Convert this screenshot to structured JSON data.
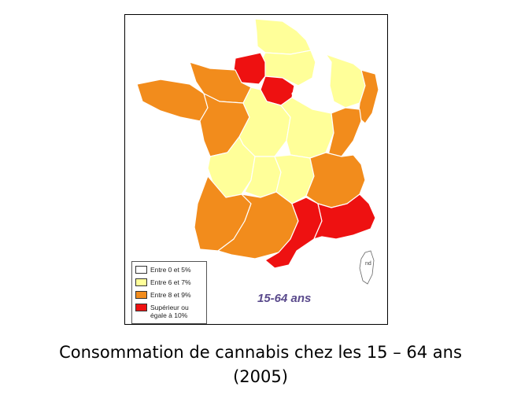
{
  "map": {
    "subtitle": "15-64 ans",
    "corsica_label": "nd",
    "legend": [
      {
        "label": "Entre 0 et 5%",
        "color": "#ffffff"
      },
      {
        "label": "Entre 6 et 7%",
        "color": "#ffff99"
      },
      {
        "label": "Entre 8 et 9%",
        "color": "#f28c1c"
      },
      {
        "label": "Supérieur ou\négale à 10%",
        "color": "#ee1111"
      }
    ],
    "regions": [
      {
        "name": "Nord-Pas-de-Calais",
        "class": "6-7%"
      },
      {
        "name": "Picardie",
        "class": "6-7%"
      },
      {
        "name": "Haute-Normandie",
        "class": ">=10%"
      },
      {
        "name": "Ile-de-France",
        "class": ">=10%"
      },
      {
        "name": "Champagne-Ardenne",
        "class": "0-5%"
      },
      {
        "name": "Lorraine",
        "class": "6-7%"
      },
      {
        "name": "Alsace",
        "class": "8-9%"
      },
      {
        "name": "Basse-Normandie",
        "class": "8-9%"
      },
      {
        "name": "Bretagne",
        "class": "8-9%"
      },
      {
        "name": "Pays de la Loire",
        "class": "8-9%"
      },
      {
        "name": "Centre",
        "class": "6-7%"
      },
      {
        "name": "Bourgogne",
        "class": "6-7%"
      },
      {
        "name": "Franche-Comté",
        "class": "8-9%"
      },
      {
        "name": "Poitou-Charentes",
        "class": "6-7%"
      },
      {
        "name": "Limousin",
        "class": "6-7%"
      },
      {
        "name": "Auvergne",
        "class": "6-7%"
      },
      {
        "name": "Rhône-Alpes",
        "class": "8-9%"
      },
      {
        "name": "Aquitaine",
        "class": "8-9%"
      },
      {
        "name": "Midi-Pyrénées",
        "class": "8-9%"
      },
      {
        "name": "Languedoc-Roussillon",
        "class": ">=10%"
      },
      {
        "name": "Provence-Alpes-Côte d'Azur",
        "class": ">=10%"
      },
      {
        "name": "Corse",
        "class": "nd"
      }
    ]
  },
  "caption": {
    "line1": "Consommation de cannabis chez les 15 – 64 ans",
    "line2": "(2005)"
  }
}
